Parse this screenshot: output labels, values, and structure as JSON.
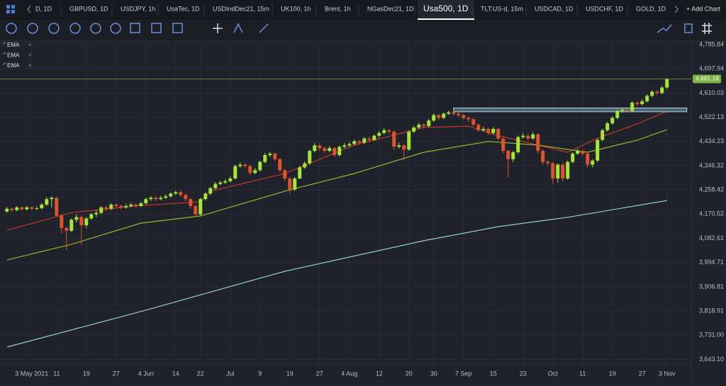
{
  "tabs": [
    "D, 1D",
    "GBPUSD, 1D",
    "USDJPY, 1h",
    "UsaTec, 1D",
    "USDIndDec21, 15m",
    "UK100, 1h",
    "Brent, 1h",
    "NGasDec21, 1D",
    "Usa500, 1D",
    "TLT:US-d, 15m",
    "USDCAD, 1D",
    "USDCHF, 1D",
    "GOLD, 1D"
  ],
  "active_tab": 8,
  "add_chart": "+ Add Chart",
  "chart_data": {
    "type": "candlestick",
    "up_color": "#a3e635",
    "down_color": "#e0522b",
    "grid": true,
    "ylim": [
      3623.7,
      4798.7
    ],
    "yticks": [
      {
        "value": 4785.84,
        "label": "4,785.84"
      },
      {
        "value": 4697.94,
        "label": "4,697.94"
      },
      {
        "value": 4610.03,
        "label": "4,610.03"
      },
      {
        "value": 4522.13,
        "label": "4,522.13"
      },
      {
        "value": 4434.23,
        "label": "4,434.23"
      },
      {
        "value": 4346.32,
        "label": "4,346.32"
      },
      {
        "value": 4258.42,
        "label": "4,258.42"
      },
      {
        "value": 4170.52,
        "label": "4,170.52"
      },
      {
        "value": 4082.61,
        "label": "4,082.61"
      },
      {
        "value": 3994.71,
        "label": "3,994.71"
      },
      {
        "value": 3906.81,
        "label": "3,906.81"
      },
      {
        "value": 3818.91,
        "label": "3,818.91"
      },
      {
        "value": 3731.0,
        "label": "3,731.00"
      },
      {
        "value": 3643.1,
        "label": "3,643.10"
      }
    ],
    "xlim": [
      -1.4,
      137.9
    ],
    "xticks": [
      {
        "value": 5,
        "label": "3 May 2021"
      },
      {
        "value": 10,
        "label": "11"
      },
      {
        "value": 16,
        "label": "19"
      },
      {
        "value": 22,
        "label": "27"
      },
      {
        "value": 28,
        "label": "4 Jun"
      },
      {
        "value": 34,
        "label": "14"
      },
      {
        "value": 39,
        "label": "22"
      },
      {
        "value": 45,
        "label": "Jul"
      },
      {
        "value": 51,
        "label": "9"
      },
      {
        "value": 57,
        "label": "19"
      },
      {
        "value": 63,
        "label": "27"
      },
      {
        "value": 69,
        "label": "4 Aug"
      },
      {
        "value": 75,
        "label": "12"
      },
      {
        "value": 81,
        "label": "20"
      },
      {
        "value": 86,
        "label": "30"
      },
      {
        "value": 92,
        "label": "7 Sep"
      },
      {
        "value": 98,
        "label": "15"
      },
      {
        "value": 104,
        "label": "23"
      },
      {
        "value": 110,
        "label": "Oct"
      },
      {
        "value": 116,
        "label": "11"
      },
      {
        "value": 122,
        "label": "19"
      },
      {
        "value": 128,
        "label": "27"
      },
      {
        "value": 133,
        "label": "3 Nov"
      }
    ],
    "candles": [
      [
        4180,
        4196,
        4176,
        4190
      ],
      [
        4190,
        4195,
        4180,
        4185
      ],
      [
        4185,
        4200,
        4181,
        4195
      ],
      [
        4195,
        4199,
        4182,
        4188
      ],
      [
        4188,
        4201,
        4184,
        4195
      ],
      [
        4195,
        4198,
        4185,
        4190
      ],
      [
        4190,
        4199,
        4186,
        4192
      ],
      [
        4192,
        4210,
        4188,
        4205
      ],
      [
        4205,
        4232,
        4200,
        4225
      ],
      [
        4225,
        4235,
        4195,
        4230
      ],
      [
        4230,
        4232,
        4160,
        4165
      ],
      [
        4165,
        4170,
        4100,
        4120
      ],
      [
        4120,
        4125,
        4040,
        4110
      ],
      [
        4110,
        4155,
        4105,
        4150
      ],
      [
        4150,
        4170,
        4140,
        4160
      ],
      [
        4160,
        4165,
        4060,
        4130
      ],
      [
        4130,
        4160,
        4120,
        4155
      ],
      [
        4155,
        4175,
        4150,
        4170
      ],
      [
        4170,
        4185,
        4160,
        4175
      ],
      [
        4175,
        4200,
        4170,
        4195
      ],
      [
        4195,
        4200,
        4180,
        4190
      ],
      [
        4190,
        4210,
        4185,
        4205
      ],
      [
        4205,
        4210,
        4195,
        4200
      ],
      [
        4200,
        4205,
        4188,
        4195
      ],
      [
        4195,
        4208,
        4190,
        4200
      ],
      [
        4200,
        4212,
        4195,
        4205
      ],
      [
        4205,
        4210,
        4193,
        4200
      ],
      [
        4200,
        4215,
        4196,
        4210
      ],
      [
        4210,
        4230,
        4205,
        4225
      ],
      [
        4225,
        4236,
        4218,
        4230
      ],
      [
        4230,
        4235,
        4218,
        4225
      ],
      [
        4225,
        4237,
        4220,
        4230
      ],
      [
        4230,
        4242,
        4225,
        4235
      ],
      [
        4235,
        4250,
        4230,
        4245
      ],
      [
        4245,
        4256,
        4240,
        4250
      ],
      [
        4250,
        4255,
        4233,
        4240
      ],
      [
        4240,
        4245,
        4218,
        4225
      ],
      [
        4225,
        4230,
        4190,
        4200
      ],
      [
        4200,
        4205,
        4160,
        4170
      ],
      [
        4170,
        4230,
        4165,
        4225
      ],
      [
        4225,
        4250,
        4220,
        4245
      ],
      [
        4245,
        4270,
        4240,
        4265
      ],
      [
        4265,
        4287,
        4260,
        4280
      ],
      [
        4280,
        4292,
        4275,
        4285
      ],
      [
        4285,
        4298,
        4280,
        4290
      ],
      [
        4290,
        4308,
        4285,
        4300
      ],
      [
        4300,
        4350,
        4296,
        4345
      ],
      [
        4345,
        4358,
        4338,
        4350
      ],
      [
        4350,
        4356,
        4336,
        4345
      ],
      [
        4345,
        4350,
        4312,
        4320
      ],
      [
        4320,
        4338,
        4315,
        4330
      ],
      [
        4330,
        4365,
        4325,
        4360
      ],
      [
        4360,
        4392,
        4355,
        4385
      ],
      [
        4385,
        4397,
        4378,
        4390
      ],
      [
        4390,
        4395,
        4362,
        4370
      ],
      [
        4370,
        4375,
        4322,
        4330
      ],
      [
        4330,
        4335,
        4290,
        4300
      ],
      [
        4300,
        4305,
        4245,
        4260
      ],
      [
        4260,
        4305,
        4255,
        4300
      ],
      [
        4300,
        4346,
        4296,
        4340
      ],
      [
        4340,
        4362,
        4335,
        4355
      ],
      [
        4355,
        4405,
        4350,
        4400
      ],
      [
        4400,
        4428,
        4395,
        4420
      ],
      [
        4420,
        4425,
        4402,
        4410
      ],
      [
        4410,
        4415,
        4392,
        4400
      ],
      [
        4400,
        4418,
        4395,
        4410
      ],
      [
        4410,
        4415,
        4378,
        4385
      ],
      [
        4385,
        4420,
        4380,
        4415
      ],
      [
        4415,
        4428,
        4410,
        4420
      ],
      [
        4420,
        4432,
        4414,
        4425
      ],
      [
        4425,
        4442,
        4420,
        4435
      ],
      [
        4435,
        4440,
        4422,
        4430
      ],
      [
        4430,
        4450,
        4425,
        4445
      ],
      [
        4445,
        4452,
        4432,
        4440
      ],
      [
        4440,
        4460,
        4436,
        4455
      ],
      [
        4455,
        4472,
        4450,
        4465
      ],
      [
        4465,
        4482,
        4460,
        4475
      ],
      [
        4475,
        4480,
        4462,
        4470
      ],
      [
        4470,
        4475,
        4405,
        4415
      ],
      [
        4415,
        4430,
        4408,
        4420
      ],
      [
        4420,
        4425,
        4365,
        4405
      ],
      [
        4405,
        4475,
        4400,
        4470
      ],
      [
        4470,
        4492,
        4465,
        4485
      ],
      [
        4485,
        4502,
        4480,
        4495
      ],
      [
        4495,
        4500,
        4482,
        4490
      ],
      [
        4490,
        4516,
        4486,
        4510
      ],
      [
        4510,
        4536,
        4505,
        4530
      ],
      [
        4530,
        4535,
        4512,
        4520
      ],
      [
        4520,
        4540,
        4515,
        4535
      ],
      [
        4535,
        4546,
        4530,
        4540
      ],
      [
        4540,
        4545,
        4528,
        4535
      ],
      [
        4535,
        4542,
        4522,
        4530
      ],
      [
        4530,
        4535,
        4512,
        4520
      ],
      [
        4520,
        4525,
        4505,
        4515
      ],
      [
        4515,
        4520,
        4488,
        4495
      ],
      [
        4495,
        4500,
        4468,
        4475
      ],
      [
        4475,
        4488,
        4470,
        4480
      ],
      [
        4480,
        4485,
        4458,
        4465
      ],
      [
        4465,
        4486,
        4460,
        4480
      ],
      [
        4480,
        4484,
        4438,
        4445
      ],
      [
        4445,
        4450,
        4390,
        4400
      ],
      [
        4400,
        4405,
        4305,
        4370
      ],
      [
        4370,
        4400,
        4360,
        4395
      ],
      [
        4395,
        4456,
        4390,
        4450
      ],
      [
        4450,
        4465,
        4445,
        4455
      ],
      [
        4455,
        4462,
        4438,
        4445
      ],
      [
        4445,
        4470,
        4440,
        4460
      ],
      [
        4460,
        4465,
        4390,
        4400
      ],
      [
        4400,
        4405,
        4350,
        4360
      ],
      [
        4360,
        4368,
        4345,
        4355
      ],
      [
        4355,
        4360,
        4280,
        4300
      ],
      [
        4300,
        4355,
        4285,
        4350
      ],
      [
        4350,
        4355,
        4290,
        4300
      ],
      [
        4300,
        4365,
        4295,
        4360
      ],
      [
        4360,
        4395,
        4355,
        4390
      ],
      [
        4390,
        4408,
        4385,
        4400
      ],
      [
        4400,
        4405,
        4382,
        4390
      ],
      [
        4390,
        4395,
        4340,
        4350
      ],
      [
        4350,
        4370,
        4340,
        4365
      ],
      [
        4365,
        4445,
        4360,
        4440
      ],
      [
        4440,
        4480,
        4435,
        4475
      ],
      [
        4475,
        4506,
        4470,
        4500
      ],
      [
        4500,
        4526,
        4495,
        4520
      ],
      [
        4520,
        4550,
        4515,
        4545
      ],
      [
        4545,
        4556,
        4538,
        4550
      ],
      [
        4550,
        4556,
        4538,
        4545
      ],
      [
        4545,
        4580,
        4540,
        4575
      ],
      [
        4575,
        4580,
        4562,
        4570
      ],
      [
        4570,
        4588,
        4565,
        4580
      ],
      [
        4580,
        4606,
        4575,
        4600
      ],
      [
        4600,
        4620,
        4595,
        4615
      ],
      [
        4615,
        4620,
        4602,
        4610
      ],
      [
        4610,
        4636,
        4605,
        4630
      ],
      [
        4630,
        4664,
        4625,
        4661.18
      ]
    ],
    "series": [
      {
        "name": "EMA",
        "color": "#c0392b",
        "x": [
          0,
          13,
          27,
          39,
          41,
          56,
          70,
          84,
          93,
          98,
          107,
          113,
          119,
          127,
          133
        ],
        "values": [
          4112,
          4176,
          4202,
          4215,
          4254,
          4318,
          4421,
          4485,
          4490,
          4460,
          4421,
          4395,
          4446,
          4498,
          4544
        ]
      },
      {
        "name": "EMA",
        "color": "#9bb52c",
        "x": [
          0,
          13,
          27,
          39,
          56,
          70,
          84,
          97,
          107,
          117,
          127,
          133
        ],
        "values": [
          4004,
          4061,
          4138,
          4164,
          4254,
          4318,
          4395,
          4434,
          4421,
          4395,
          4439,
          4477
        ]
      },
      {
        "name": "EMA",
        "color": "#8fcfcf",
        "x": [
          0,
          27,
          56,
          84,
          99,
          113,
          133
        ],
        "values": [
          3688,
          3817,
          3963,
          4074,
          4125,
          4159,
          4220
        ]
      }
    ],
    "zone": {
      "x": [
        90,
        137
      ],
      "y": [
        4542,
        4556
      ]
    },
    "last_price": {
      "value": 4661.18,
      "label": "4,661.18"
    }
  }
}
